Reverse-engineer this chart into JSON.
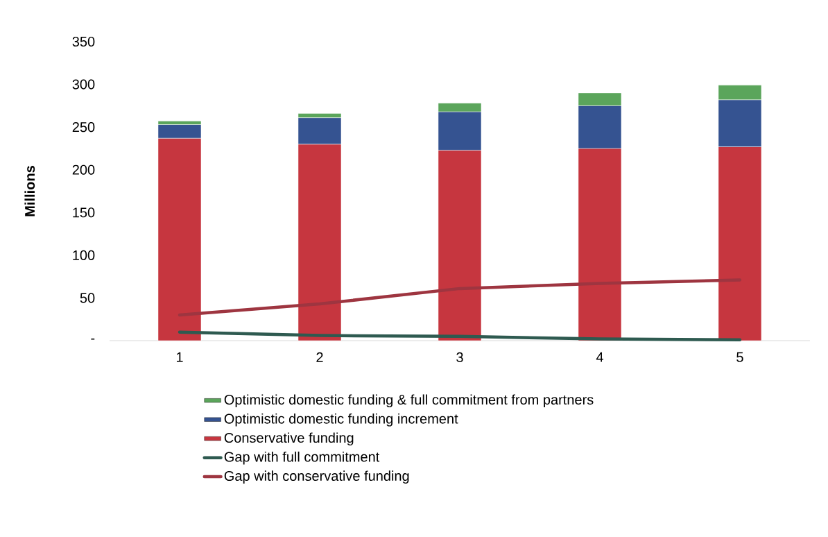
{
  "chart_data": {
    "type": "bar",
    "stacked": true,
    "ylabel": "Millions",
    "legend": "bottom",
    "categories": [
      "1",
      "2",
      "3",
      "4",
      "5"
    ],
    "ylim": [
      0,
      350
    ],
    "yticks": [
      {
        "value": 0,
        "label": "-"
      },
      50,
      100,
      150,
      200,
      250,
      300,
      350
    ],
    "series": [
      {
        "name": "Conservative funding",
        "type": "bar",
        "color": "#c6363f",
        "values": [
          237,
          230,
          223,
          225,
          227
        ]
      },
      {
        "name": "Optimistic domestic funding increment",
        "type": "bar",
        "color": "#355391",
        "values": [
          16,
          31,
          45,
          50,
          55
        ]
      },
      {
        "name": "Optimistic domestic funding & full commitment from partners",
        "type": "bar",
        "color": "#5ba55b",
        "values": [
          4,
          5,
          10,
          15,
          17
        ]
      },
      {
        "name": "Gap with full commitment",
        "type": "line",
        "color": "#2e5a50",
        "values": [
          10,
          6,
          5,
          2,
          1
        ]
      },
      {
        "name": "Gap with conservative funding",
        "type": "line",
        "color": "#9e3540",
        "values": [
          30,
          43,
          61,
          67,
          71
        ]
      }
    ]
  }
}
